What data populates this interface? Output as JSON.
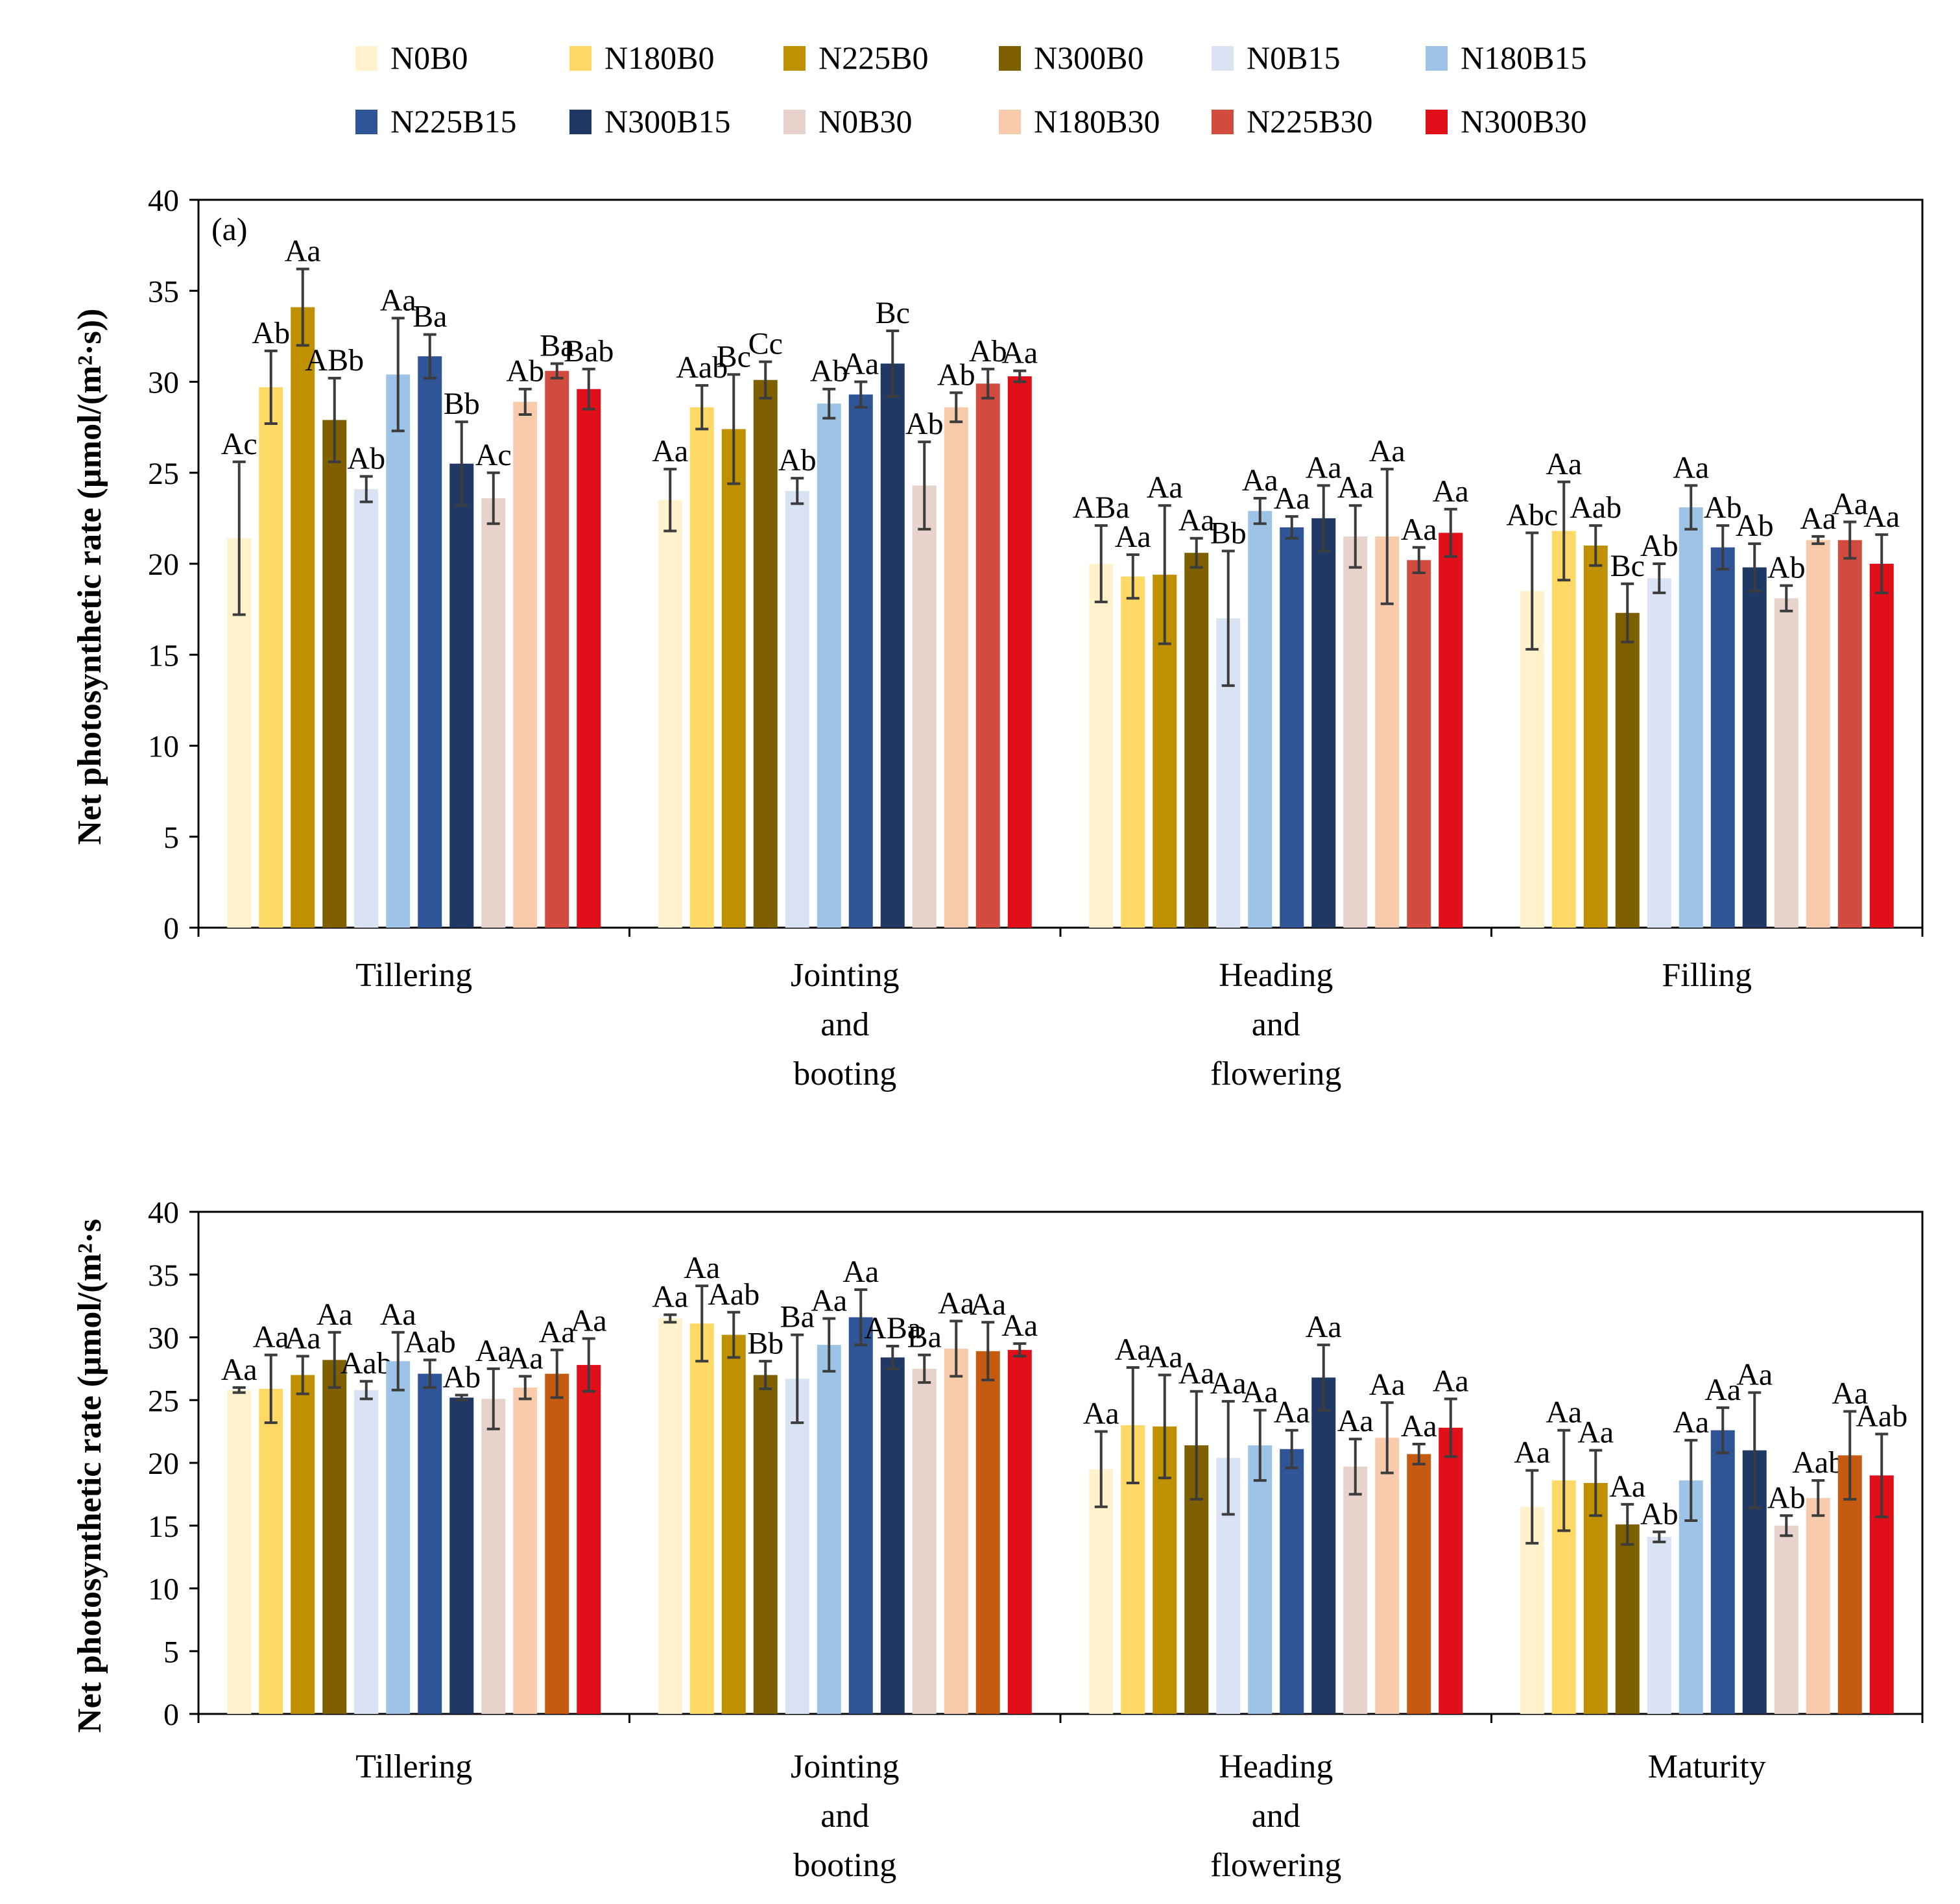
{
  "chart_data": [
    {
      "type": "bar",
      "panel_label": "(a)",
      "ylabel": "Net photosynthetic rate (µmol/(m²·s))",
      "ylim": [
        0,
        40
      ],
      "yticks": [
        0,
        5,
        10,
        15,
        20,
        25,
        30,
        35,
        40
      ],
      "categories": [
        [
          "Tillering"
        ],
        [
          "Jointing",
          "and",
          "booting"
        ],
        [
          "Heading",
          "and",
          "flowering"
        ],
        [
          "Filling"
        ]
      ],
      "series": [
        {
          "name": "N0B0",
          "values": [
            21.4,
            23.5,
            20.0,
            18.5
          ],
          "errors": [
            4.2,
            1.7,
            2.1,
            3.2
          ],
          "labels": [
            "Ac",
            "Aa",
            "ABa",
            "Abc"
          ]
        },
        {
          "name": "N180B0",
          "values": [
            29.7,
            28.6,
            19.3,
            21.8
          ],
          "errors": [
            2.0,
            1.2,
            1.2,
            2.7
          ],
          "labels": [
            "Ab",
            "Aab",
            "Aa",
            "Aa"
          ]
        },
        {
          "name": "N225B0",
          "values": [
            34.1,
            27.4,
            19.4,
            21.0
          ],
          "errors": [
            2.1,
            3.0,
            3.8,
            1.1
          ],
          "labels": [
            "Aa",
            "Bc",
            "Aa",
            "Aab"
          ]
        },
        {
          "name": "N300B0",
          "values": [
            27.9,
            30.1,
            20.6,
            17.3
          ],
          "errors": [
            2.3,
            1.0,
            0.8,
            1.6
          ],
          "labels": [
            "ABb",
            "Cc",
            "Aa",
            "Bc"
          ]
        },
        {
          "name": "N0B15",
          "values": [
            24.1,
            24.0,
            17.0,
            19.2
          ],
          "errors": [
            0.7,
            0.7,
            3.7,
            0.8
          ],
          "labels": [
            "Ab",
            "Ab",
            "Bb",
            "Ab"
          ]
        },
        {
          "name": "N180B15",
          "values": [
            30.4,
            28.8,
            22.9,
            23.1
          ],
          "errors": [
            3.1,
            0.8,
            0.7,
            1.2
          ],
          "labels": [
            "Aa",
            "Ab",
            "Aa",
            "Aa"
          ]
        },
        {
          "name": "N225B15",
          "values": [
            31.4,
            29.3,
            22.0,
            20.9
          ],
          "errors": [
            1.2,
            0.7,
            0.6,
            1.2
          ],
          "labels": [
            "Ba",
            "Aa",
            "Aa",
            "Ab"
          ]
        },
        {
          "name": "N300B15",
          "values": [
            25.5,
            31.0,
            22.5,
            19.8
          ],
          "errors": [
            2.3,
            1.8,
            1.8,
            1.3
          ],
          "labels": [
            "Bb",
            "Bc",
            "Aa",
            "Ab"
          ]
        },
        {
          "name": "N0B30",
          "values": [
            23.6,
            24.3,
            21.5,
            18.1
          ],
          "errors": [
            1.4,
            2.4,
            1.7,
            0.7
          ],
          "labels": [
            "Ac",
            "Ab",
            "Aa",
            "Ab"
          ]
        },
        {
          "name": "N180B30",
          "values": [
            28.9,
            28.6,
            21.5,
            21.3
          ],
          "errors": [
            0.7,
            0.8,
            3.7,
            0.2
          ],
          "labels": [
            "Ab",
            "Ab",
            "Aa",
            "Aa"
          ]
        },
        {
          "name": "N225B30",
          "values": [
            30.6,
            29.9,
            20.2,
            21.3
          ],
          "errors": [
            0.4,
            0.8,
            0.7,
            1.0
          ],
          "labels": [
            "Ba",
            "Ab",
            "Aa",
            "Aa"
          ]
        },
        {
          "name": "N300B30",
          "values": [
            29.6,
            30.3,
            21.7,
            20.0
          ],
          "errors": [
            1.1,
            0.3,
            1.3,
            1.6
          ],
          "labels": [
            "Bab",
            "Aa",
            "Aa",
            "Aa"
          ]
        }
      ]
    },
    {
      "type": "bar",
      "panel_label": "",
      "ylabel": "Net photosynthetic rate (µmol/(m²·s",
      "ylim": [
        0,
        40
      ],
      "yticks": [
        0,
        5,
        10,
        15,
        20,
        25,
        30,
        35,
        40
      ],
      "categories": [
        [
          "Tillering"
        ],
        [
          "Jointing",
          "and",
          "booting"
        ],
        [
          "Heading",
          "and",
          "flowering"
        ],
        [
          "Maturity"
        ]
      ],
      "series": [
        {
          "name": "N0B0",
          "values": [
            25.8,
            31.5,
            19.5,
            16.5
          ],
          "errors": [
            0.2,
            0.3,
            3.0,
            2.9
          ],
          "labels": [
            "Aa",
            "Aa",
            "Aa",
            "Aa"
          ]
        },
        {
          "name": "N180B0",
          "values": [
            25.9,
            31.1,
            23.0,
            18.6
          ],
          "errors": [
            2.7,
            3.0,
            4.6,
            4.0
          ],
          "labels": [
            "Aa",
            "Aa",
            "Aa",
            "Aa"
          ]
        },
        {
          "name": "N225B0",
          "values": [
            27.0,
            30.2,
            22.9,
            18.4
          ],
          "errors": [
            1.5,
            1.8,
            4.1,
            2.6
          ],
          "labels": [
            "Aa",
            "Aab",
            "Aa",
            "Aa"
          ]
        },
        {
          "name": "N300B0",
          "values": [
            28.2,
            27.0,
            21.4,
            15.1
          ],
          "errors": [
            2.2,
            1.1,
            4.3,
            1.6
          ],
          "labels": [
            "Aa",
            "Bb",
            "Aa",
            "Aa"
          ]
        },
        {
          "name": "N0B15",
          "values": [
            25.8,
            26.7,
            20.4,
            14.1
          ],
          "errors": [
            0.7,
            3.5,
            4.5,
            0.4
          ],
          "labels": [
            "Aab",
            "Ba",
            "Aa",
            "Ab"
          ]
        },
        {
          "name": "N180B15",
          "values": [
            28.1,
            29.4,
            21.4,
            18.6
          ],
          "errors": [
            2.3,
            2.1,
            2.8,
            3.2
          ],
          "labels": [
            "Aa",
            "Aa",
            "Aa",
            "Aa"
          ]
        },
        {
          "name": "N225B15",
          "values": [
            27.1,
            31.6,
            21.1,
            22.6
          ],
          "errors": [
            1.1,
            2.2,
            1.5,
            1.8
          ],
          "labels": [
            "Aab",
            "Aa",
            "Aa",
            "Aa"
          ]
        },
        {
          "name": "N300B15",
          "values": [
            25.2,
            28.4,
            26.8,
            21.0
          ],
          "errors": [
            0.2,
            0.9,
            2.6,
            4.6
          ],
          "labels": [
            "Ab",
            "ABa",
            "Aa",
            "Aa"
          ]
        },
        {
          "name": "N0B30",
          "values": [
            25.1,
            27.5,
            19.7,
            15.0
          ],
          "errors": [
            2.4,
            1.1,
            2.2,
            0.8
          ],
          "labels": [
            "Aa",
            "Ba",
            "Aa",
            "Ab"
          ]
        },
        {
          "name": "N180B30",
          "values": [
            26.0,
            29.1,
            22.0,
            17.2
          ],
          "errors": [
            0.9,
            2.2,
            2.8,
            1.4
          ],
          "labels": [
            "Aa",
            "Aa",
            "Aa",
            "Aab"
          ]
        },
        {
          "name": "N225B30",
          "values": [
            27.1,
            28.9,
            20.7,
            20.6
          ],
          "errors": [
            1.9,
            2.3,
            0.8,
            3.5
          ],
          "labels": [
            "Aa",
            "Aa",
            "Aa",
            "Aa"
          ]
        },
        {
          "name": "N300B30",
          "values": [
            27.8,
            29.0,
            22.8,
            19.0
          ],
          "errors": [
            2.1,
            0.5,
            2.3,
            3.3
          ],
          "labels": [
            "Aa",
            "Aa",
            "Aa",
            "Aab"
          ]
        }
      ]
    }
  ],
  "legend": {
    "placement": "top",
    "items": [
      {
        "name": "N0B0",
        "color": "#FFF2CC"
      },
      {
        "name": "N180B0",
        "color": "#FFD966"
      },
      {
        "name": "N225B0",
        "color": "#BF9000"
      },
      {
        "name": "N300B0",
        "color": "#7F6000"
      },
      {
        "name": "N0B15",
        "color": "#DAE3F3"
      },
      {
        "name": "N180B15",
        "color": "#9DC3E6"
      },
      {
        "name": "N225B15",
        "color": "#2F5597"
      },
      {
        "name": "N300B15",
        "color": "#203864"
      },
      {
        "name": "N0B30",
        "color": "#E7D3CC"
      },
      {
        "name": "N180B30",
        "color": "#F8CBAD"
      },
      {
        "name": "N225B30",
        "color": "#D24B3F"
      },
      {
        "name": "N300B30",
        "color": "#E10F19"
      }
    ]
  },
  "panel_b_color_overrides": {
    "N225B30": "#C55A11"
  }
}
